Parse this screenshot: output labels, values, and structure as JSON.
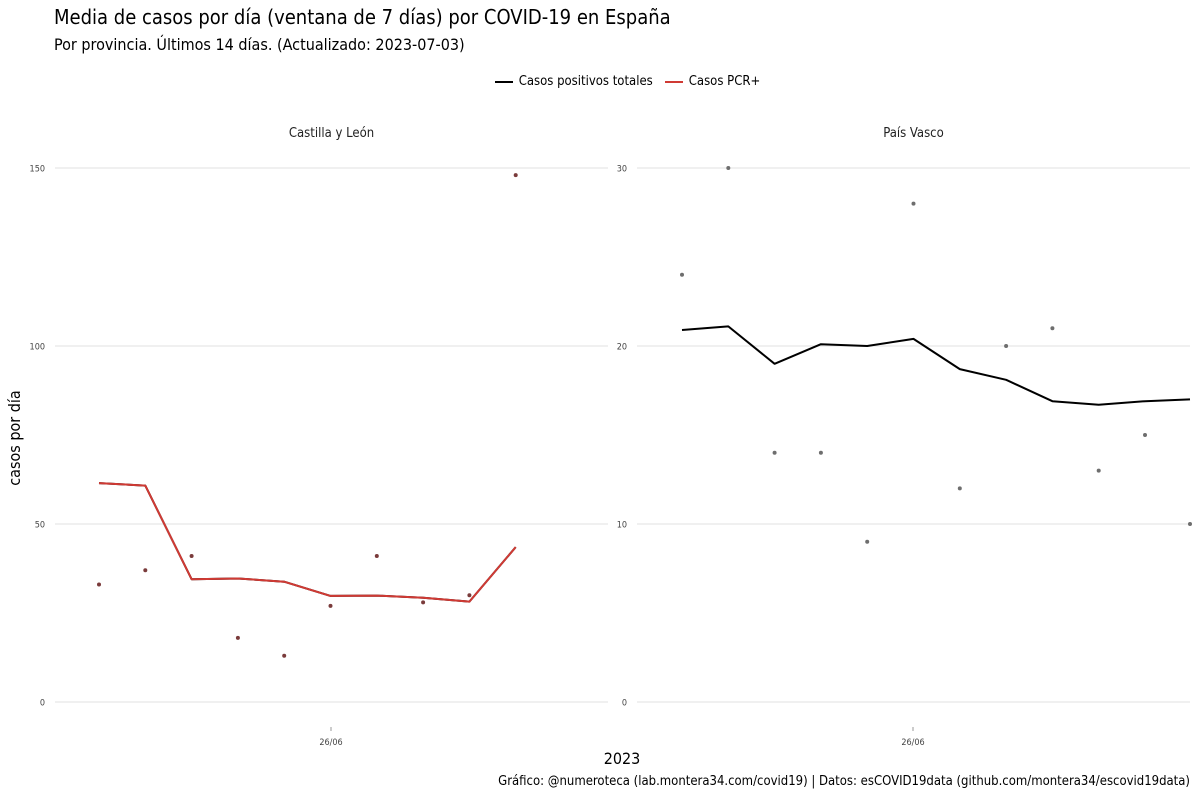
{
  "title": "Media de casos por día (ventana de 7 días) por COVID-19 en España",
  "subtitle": "Por provincia. Últimos 14 días. (Actualizado: 2023-07-03)",
  "caption": "Gráfico: @numeroteca (lab.montera34.com/covid19) | Datos: esCOVID19data (github.com/montera34/escovid19data)",
  "colors": {
    "total": "#000000",
    "pcr": "#d03a34",
    "grid": "#e8e8e8",
    "point": "#6e6e6e",
    "point_pcr": "#7a3b3b"
  },
  "legend": [
    {
      "label": "Casos positivos totales",
      "color": "#000000"
    },
    {
      "label": "Casos PCR+",
      "color": "#d03a34"
    }
  ],
  "chart_data": {
    "type": "line",
    "xlabel": "2023",
    "ylabel": "casos por día",
    "x_tick_labels": [
      "26/06"
    ],
    "x_tick_index": 5,
    "panels": [
      {
        "title": "Castilla y León",
        "ylim": [
          0,
          150
        ],
        "yticks": [
          0,
          50,
          100,
          150
        ],
        "point_style": "pcr",
        "points": [
          33,
          37,
          41,
          18,
          13,
          27,
          41,
          28,
          30,
          148
        ],
        "lines": [
          {
            "name": "Casos positivos totales",
            "values": [
              61.5,
              60.8,
              34.5,
              34.7,
              33.8,
              29.8,
              29.9,
              29.3,
              28.2,
              43.5
            ],
            "color": "#000000"
          },
          {
            "name": "Casos PCR+",
            "values": [
              61.5,
              60.8,
              34.5,
              34.7,
              33.8,
              29.8,
              29.9,
              29.3,
              28.2,
              43.5
            ],
            "color": "#d03a34"
          }
        ]
      },
      {
        "title": "País Vasco",
        "ylim": [
          0,
          30
        ],
        "yticks": [
          0,
          10,
          20,
          30
        ],
        "point_style": "total",
        "points": [
          24,
          30,
          14,
          14,
          9,
          28,
          12,
          20,
          21,
          13,
          15,
          10
        ],
        "lines": [
          {
            "name": "Casos positivos totales",
            "values": [
              20.9,
              21.1,
              19.0,
              20.1,
              20.0,
              20.4,
              18.7,
              18.1,
              16.9,
              16.7,
              16.9,
              17.0
            ],
            "color": "#000000"
          }
        ]
      }
    ]
  }
}
